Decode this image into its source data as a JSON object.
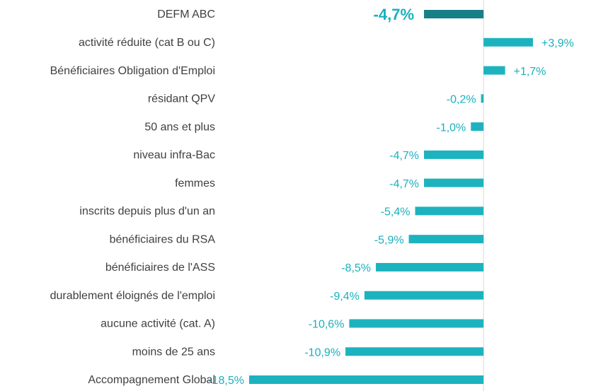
{
  "chart_data": {
    "type": "bar",
    "orientation": "horizontal",
    "categories": [
      "DEFM ABC",
      "activité réduite (cat B ou C)",
      "Bénéficiaires Obligation d'Emploi",
      "résidant QPV",
      "50 ans et plus",
      "niveau infra-Bac",
      "femmes",
      "inscrits depuis plus d'un an",
      "bénéficiaires du RSA",
      "bénéficiaires de l'ASS",
      "durablement éloignés de l'emploi",
      "aucune activité (cat. A)",
      "moins de 25 ans",
      "Accompagnement Global"
    ],
    "values": [
      -4.7,
      3.9,
      1.7,
      -0.2,
      -1.0,
      -4.7,
      -4.7,
      -5.4,
      -5.9,
      -8.5,
      -9.4,
      -10.6,
      -10.9,
      -18.5
    ],
    "value_labels": [
      "-4,7%",
      "+3,9%",
      "+1,7%",
      "-0,2%",
      "-1,0%",
      "-4,7%",
      "-4,7%",
      "-5,4%",
      "-5,9%",
      "-8,5%",
      "-9,4%",
      "-10,6%",
      "-10,9%",
      "-18,5%"
    ],
    "colors": [
      "#177f86",
      "#1db3be",
      "#1db3be",
      "#1db3be",
      "#1db3be",
      "#1db3be",
      "#1db3be",
      "#1db3be",
      "#1db3be",
      "#1db3be",
      "#1db3be",
      "#1db3be",
      "#1db3be",
      "#1db3be"
    ],
    "label_color": "#1ab0bd"
  }
}
